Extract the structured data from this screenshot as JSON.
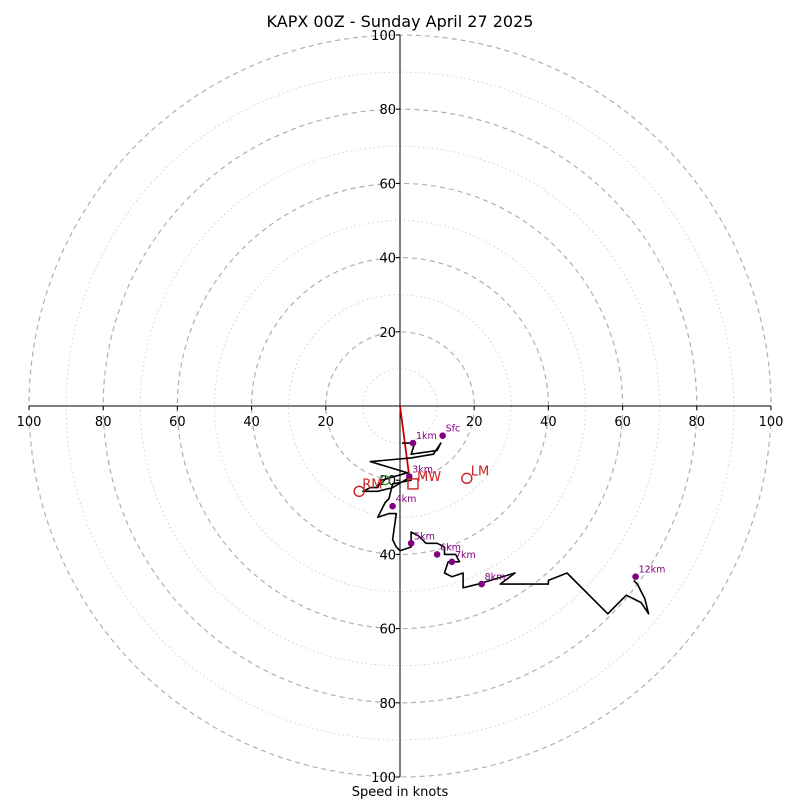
{
  "chart_data": {
    "type": "hodograph",
    "title": "KAPX 00Z - Sunday April 27 2025",
    "xlabel": "Speed in knots",
    "range": [
      -100,
      100
    ],
    "tick_step": 20,
    "tick_labels": [
      "100",
      "80",
      "60",
      "40",
      "20",
      "20",
      "40",
      "60",
      "80",
      "100"
    ],
    "y_tick_labels": [
      "100",
      "80",
      "60",
      "40",
      "20"
    ],
    "y_tick_labels_bottom": [
      "20",
      "40",
      "60",
      "80",
      "100"
    ],
    "grid": "dashed rings every 20 kt, dotted rings at odd 10s",
    "trace": [
      [
        0.5,
        -10
      ],
      [
        4,
        -10
      ],
      [
        3,
        -13
      ],
      [
        10,
        -12
      ],
      [
        11,
        -10
      ],
      [
        9,
        -13
      ],
      [
        3,
        -14
      ],
      [
        -8,
        -15
      ],
      [
        2,
        -18
      ],
      [
        -5,
        -20
      ],
      [
        -6,
        -22
      ],
      [
        -8,
        -22
      ],
      [
        -10,
        -23
      ],
      [
        -6,
        -23
      ],
      [
        -2,
        -22
      ],
      [
        3,
        -19
      ],
      [
        3,
        -20
      ],
      [
        -2,
        -21
      ],
      [
        -3,
        -25
      ],
      [
        -4,
        -26
      ],
      [
        -6,
        -30
      ],
      [
        -3,
        -29
      ],
      [
        -1,
        -29
      ],
      [
        -2,
        -36
      ],
      [
        -1,
        -38
      ],
      [
        0,
        -39
      ],
      [
        3,
        -38
      ],
      [
        3,
        -34
      ],
      [
        5,
        -35
      ],
      [
        7,
        -37
      ],
      [
        10,
        -37
      ],
      [
        12,
        -38
      ],
      [
        12,
        -40
      ],
      [
        15,
        -40
      ],
      [
        16,
        -42
      ],
      [
        13,
        -42
      ],
      [
        12,
        -45
      ],
      [
        14,
        -46
      ],
      [
        17,
        -45
      ],
      [
        17,
        -49
      ],
      [
        21,
        -48
      ],
      [
        31,
        -45
      ],
      [
        27,
        -48
      ],
      [
        40,
        -48
      ],
      [
        40,
        -47
      ],
      [
        45,
        -45
      ],
      [
        56,
        -56
      ],
      [
        59,
        -53
      ],
      [
        61,
        -51
      ],
      [
        63,
        -52
      ],
      [
        65,
        -53
      ],
      [
        67,
        -56
      ],
      [
        66,
        -52
      ],
      [
        64,
        -48
      ],
      [
        63,
        -47
      ]
    ],
    "points": [
      {
        "label": "Sfc",
        "u": 11.5,
        "v": -8
      },
      {
        "label": "1km",
        "u": 3.5,
        "v": -10
      },
      {
        "label": "3km",
        "u": 2.5,
        "v": -19
      },
      {
        "label": "4km",
        "u": -2,
        "v": -27
      },
      {
        "label": "5km",
        "u": 3,
        "v": -37
      },
      {
        "label": "6km",
        "u": 10,
        "v": -40
      },
      {
        "label": "7km",
        "u": 14,
        "v": -42
      },
      {
        "label": "8km",
        "u": 22,
        "v": -48
      },
      {
        "label": "12km",
        "u": 63.5,
        "v": -46
      }
    ],
    "storm_motion": {
      "RM": {
        "label": "RM",
        "u": -11,
        "v": -23
      },
      "LM": {
        "label": "LM",
        "u": 18,
        "v": -19.5
      },
      "MW": {
        "label": "MW",
        "u": 3.5,
        "v": -21
      }
    },
    "shear_vector": [
      [
        0,
        0
      ],
      [
        2.5,
        -19
      ]
    ],
    "extra_markers": [
      {
        "u": -4,
        "v": -20
      }
    ],
    "colors": {
      "trace": "#000000",
      "point": "#800080",
      "shear": "#cc0000",
      "storm": "#cc2222",
      "grid": "#b0b0b0"
    }
  }
}
